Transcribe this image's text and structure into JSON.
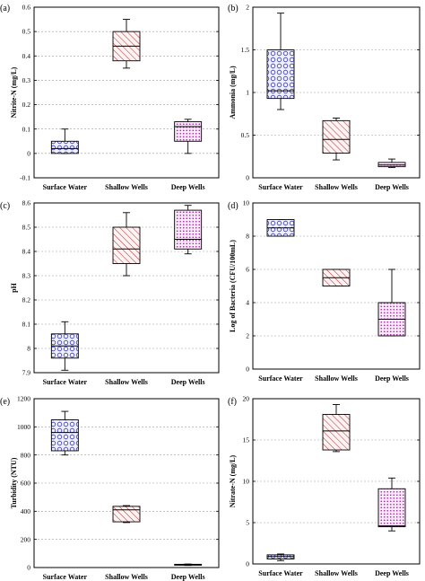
{
  "patterns": {
    "Surface Water": {
      "color": "#3a3aa8",
      "fill": "#eef0ff",
      "kind": "circles"
    },
    "Shallow Wells": {
      "color": "#b03030",
      "fill": "#fff2f2",
      "kind": "hatch"
    },
    "Deep Wells": {
      "color": "#9a1a9a",
      "fill": "#fbe8fb",
      "kind": "dots"
    }
  },
  "chart_data": [
    {
      "panel": "(a)",
      "type": "box",
      "ylabel": "Nitrite-N (mg/L)",
      "ylim": [
        -0.1,
        0.6
      ],
      "yticks": [
        -0.1,
        0,
        0.1,
        0.2,
        0.3,
        0.4,
        0.5,
        0.6
      ],
      "ytick_labels": [
        "-0.1",
        "0",
        "0.1",
        "0.2",
        "0.3",
        "0.4",
        "0.5",
        "0.6"
      ],
      "grid": true,
      "categories": [
        "Surface Water",
        "Shallow Wells",
        "Deep Wells"
      ],
      "boxes": [
        {
          "min": 0.0,
          "q1": 0.0,
          "median": 0.02,
          "q3": 0.05,
          "max": 0.1
        },
        {
          "min": 0.35,
          "q1": 0.38,
          "median": 0.44,
          "q3": 0.5,
          "max": 0.55
        },
        {
          "min": 0.0,
          "q1": 0.05,
          "median": 0.11,
          "q3": 0.13,
          "max": 0.14
        }
      ]
    },
    {
      "panel": "(b)",
      "type": "box",
      "ylabel": "Ammonia (mg/L)",
      "ylim": [
        0,
        2
      ],
      "yticks": [
        0,
        0.5,
        1,
        1.5,
        2
      ],
      "ytick_labels": [
        "0",
        "0.5",
        "1",
        "1.5",
        "2"
      ],
      "grid": true,
      "categories": [
        "Surface Water",
        "Shallow Wells",
        "Deep Wells"
      ],
      "boxes": [
        {
          "min": 0.8,
          "q1": 0.93,
          "median": 1.02,
          "q3": 1.5,
          "max": 1.93
        },
        {
          "min": 0.21,
          "q1": 0.29,
          "median": 0.45,
          "q3": 0.67,
          "max": 0.7
        },
        {
          "min": 0.12,
          "q1": 0.13,
          "median": 0.15,
          "q3": 0.18,
          "max": 0.22
        }
      ]
    },
    {
      "panel": "(c)",
      "type": "box",
      "ylabel": "pH",
      "ylim": [
        7.9,
        8.6
      ],
      "yticks": [
        7.9,
        8,
        8.1,
        8.2,
        8.3,
        8.4,
        8.5,
        8.6
      ],
      "ytick_labels": [
        "7.9",
        "8",
        "8.1",
        "8.2",
        "8.3",
        "8.4",
        "8.5",
        "8.6"
      ],
      "grid": true,
      "categories": [
        "Surface Water",
        "Shallow Wells",
        "Deep Wells"
      ],
      "boxes": [
        {
          "min": 7.91,
          "q1": 7.96,
          "median": 8.01,
          "q3": 8.06,
          "max": 8.11
        },
        {
          "min": 8.3,
          "q1": 8.35,
          "median": 8.41,
          "q3": 8.5,
          "max": 8.56
        },
        {
          "min": 8.39,
          "q1": 8.41,
          "median": 8.45,
          "q3": 8.57,
          "max": 8.59
        }
      ]
    },
    {
      "panel": "(d)",
      "type": "box",
      "ylabel": "Log of Bacteria (CFU/100mL)",
      "ylim": [
        0,
        10
      ],
      "yticks": [
        0,
        2,
        4,
        6,
        8,
        10
      ],
      "ytick_labels": [
        "0",
        "2",
        "4",
        "6",
        "8",
        "10"
      ],
      "grid": true,
      "categories": [
        "Surface Water",
        "Shallow Wells",
        "Deep Wells"
      ],
      "boxes": [
        {
          "min": 8,
          "q1": 8,
          "median": 8.5,
          "q3": 9,
          "max": 9
        },
        {
          "min": 5,
          "q1": 5,
          "median": 5.5,
          "q3": 6,
          "max": 6
        },
        {
          "min": 2,
          "q1": 2,
          "median": 3,
          "q3": 4,
          "max": 6
        }
      ]
    },
    {
      "panel": "(e)",
      "type": "box",
      "ylabel": "Turbidity (NTU)",
      "ylim": [
        0,
        1200
      ],
      "yticks": [
        0,
        200,
        400,
        600,
        800,
        1000,
        1200
      ],
      "ytick_labels": [
        "0",
        "200",
        "400",
        "600",
        "800",
        "1000",
        "1200"
      ],
      "grid": true,
      "categories": [
        "Surface Water",
        "Shallow Wells",
        "Deep Wells"
      ],
      "boxes": [
        {
          "min": 800,
          "q1": 830,
          "median": 960,
          "q3": 1050,
          "max": 1110
        },
        {
          "min": 320,
          "q1": 325,
          "median": 410,
          "q3": 435,
          "max": 440
        },
        {
          "min": 15,
          "q1": 17,
          "median": 20,
          "q3": 23,
          "max": 25
        }
      ]
    },
    {
      "panel": "(f)",
      "type": "box",
      "ylabel": "Nitrate-N (mg/L)",
      "ylim": [
        0,
        20
      ],
      "yticks": [
        0,
        5,
        10,
        15,
        20
      ],
      "ytick_labels": [
        "0",
        "5",
        "10",
        "15",
        "20"
      ],
      "grid": true,
      "categories": [
        "Surface Water",
        "Shallow Wells",
        "Deep Wells"
      ],
      "boxes": [
        {
          "min": 0.4,
          "q1": 0.6,
          "median": 0.9,
          "q3": 1.1,
          "max": 1.2
        },
        {
          "min": 13.6,
          "q1": 13.8,
          "median": 16.1,
          "q3": 18.1,
          "max": 19.3
        },
        {
          "min": 4.0,
          "q1": 4.5,
          "median": 4.6,
          "q3": 9.1,
          "max": 10.4
        }
      ]
    }
  ]
}
